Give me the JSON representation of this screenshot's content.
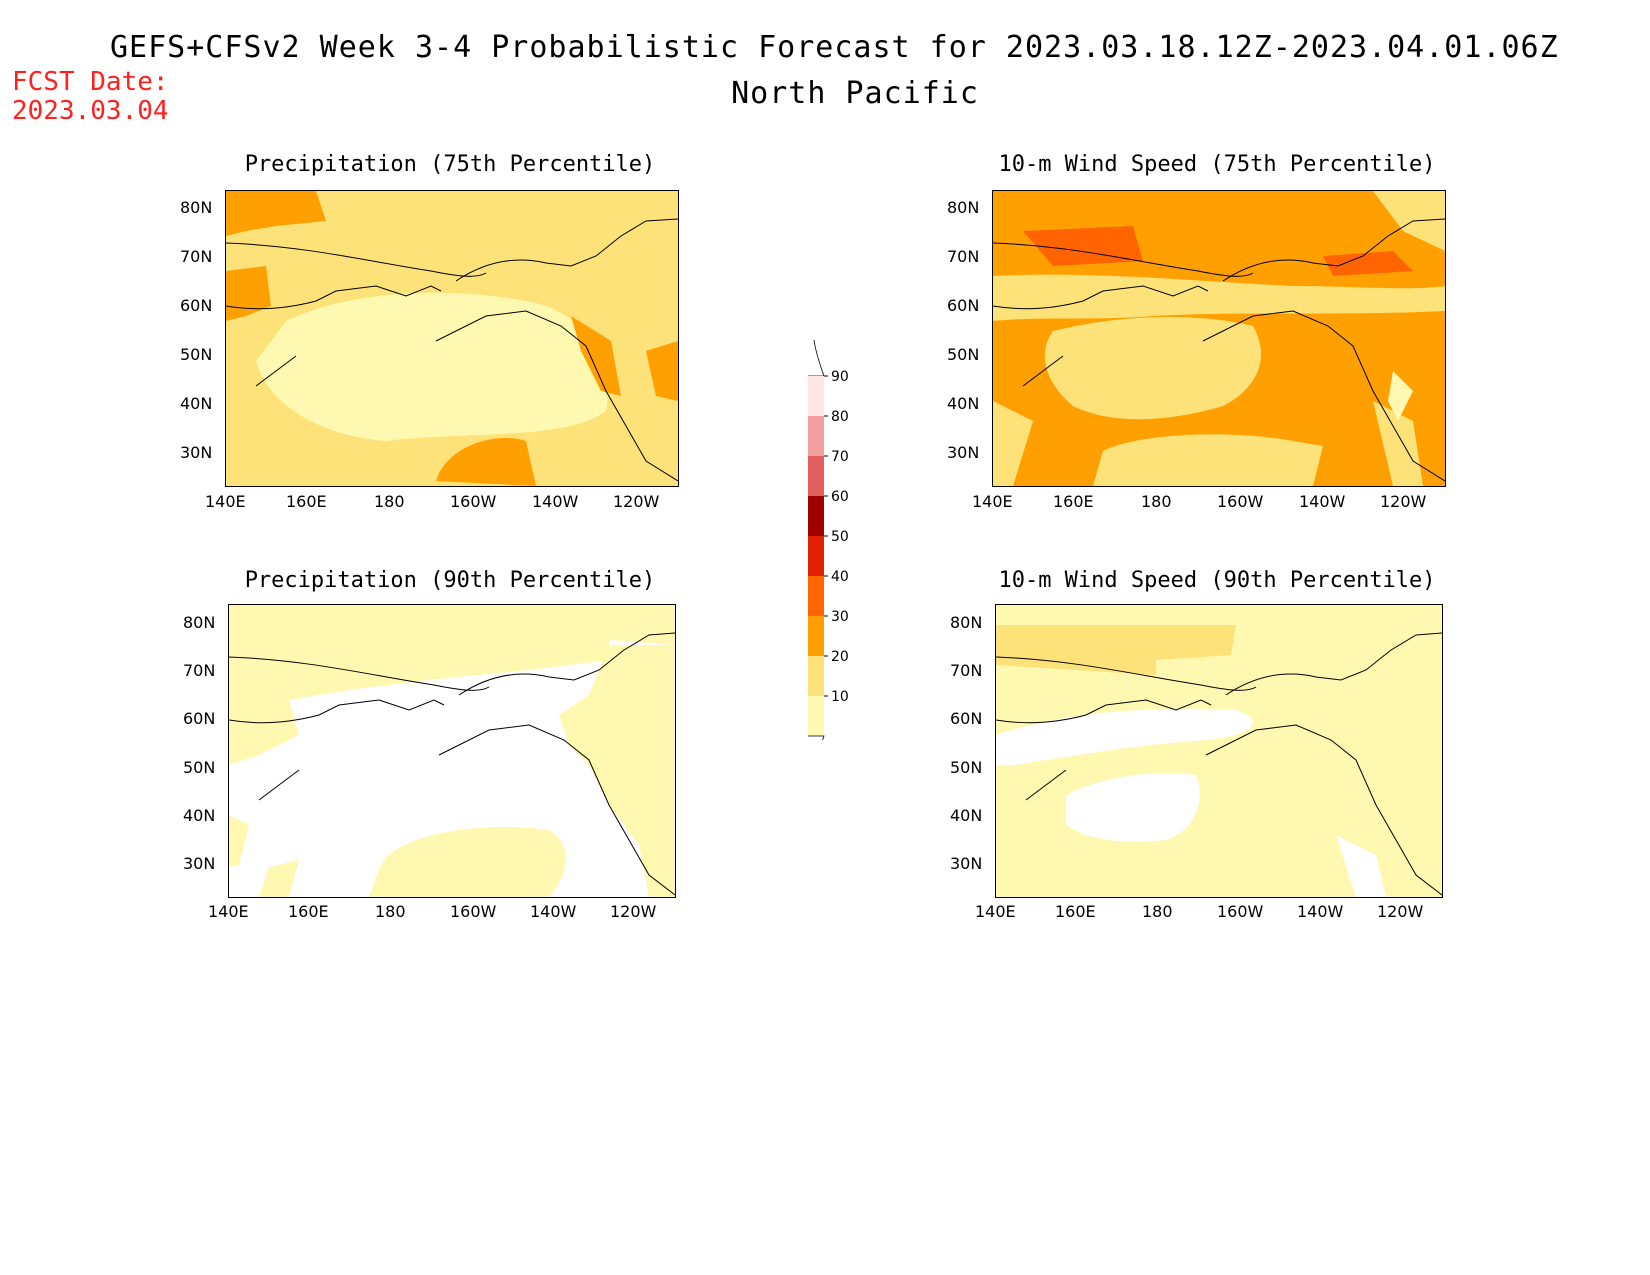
{
  "header": {
    "title": "GEFS+CFSv2 Week 3-4 Probabilistic Forecast for 2023.03.18.12Z-2023.04.01.06Z",
    "subtitle": "North Pacific",
    "fcst_label": "FCST Date:",
    "fcst_date": "2023.03.04"
  },
  "axes": {
    "lat_ticks": [
      "80N",
      "70N",
      "60N",
      "50N",
      "40N",
      "30N"
    ],
    "lon_ticks": [
      "140E",
      "160E",
      "180",
      "160W",
      "140W",
      "120W"
    ]
  },
  "panels": [
    {
      "title": "Precipitation (75th Percentile)"
    },
    {
      "title": "10-m Wind Speed (75th Percentile)"
    },
    {
      "title": "Precipitation (90th Percentile)"
    },
    {
      "title": "10-m Wind Speed (90th Percentile)"
    }
  ],
  "colorbar": {
    "labels": [
      "90",
      "80",
      "70",
      "60",
      "50",
      "40",
      "30",
      "20",
      "10"
    ],
    "colors": [
      "#ffe6e6",
      "#f2a0a0",
      "#e06060",
      "#a00000",
      "#e02000",
      "#ff6400",
      "#ffa000",
      "#fde27a",
      "#fff8b0"
    ]
  },
  "palette": {
    "white": "#ffffff",
    "lightyellow": "#fff8b0",
    "yellow": "#fde27a",
    "orange": "#ffa000",
    "darkorange": "#ff6400",
    "red": "#e02000"
  }
}
